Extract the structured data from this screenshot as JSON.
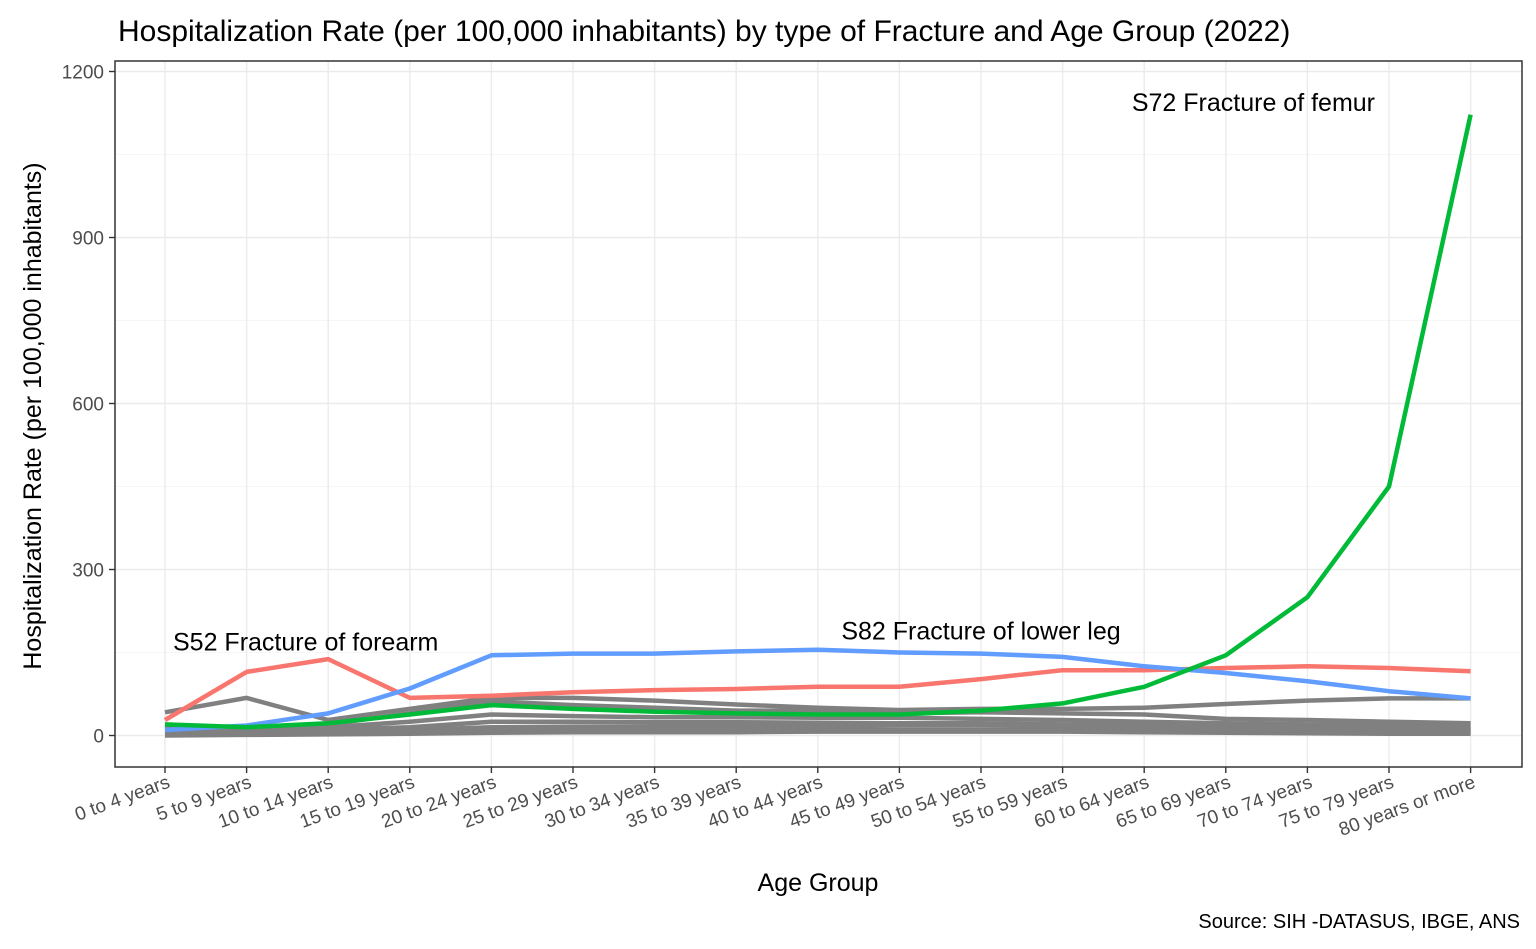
{
  "chart_data": {
    "type": "line",
    "title": "Hospitalization Rate (per 100,000 inhabitants) by type of Fracture and Age Group (2022)",
    "xlabel": "Age Group",
    "ylabel": "Hospitalization Rate (per 100,000 inhabitants)",
    "caption": "Source: SIH -DATASUS, IBGE, ANS",
    "ylim": [
      -60,
      1260
    ],
    "yticks": [
      0,
      300,
      600,
      900,
      1200
    ],
    "grid": true,
    "categories": [
      "0 to 4 years",
      "5 to 9 years",
      "10 to 14 years",
      "15 to 19 years",
      "20 to 24 years",
      "25 to 29 years",
      "30 to 34 years",
      "35 to 39 years",
      "40 to 44 years",
      "45 to 49 years",
      "50 to 54 years",
      "55 to 59 years",
      "60 to 64 years",
      "65 to 69 years",
      "70 to 74 years",
      "75 to 79 years",
      "80 years or more"
    ],
    "background_series": [
      {
        "name": "other-1",
        "color": "#808080",
        "values": [
          42,
          68,
          28,
          48,
          68,
          68,
          63,
          56,
          50,
          46,
          48,
          48,
          50,
          57,
          63,
          67,
          67
        ]
      },
      {
        "name": "other-2",
        "color": "#808080",
        "values": [
          18,
          12,
          20,
          40,
          62,
          55,
          50,
          45,
          45,
          40,
          42,
          40,
          38,
          30,
          28,
          25,
          22
        ]
      },
      {
        "name": "other-3",
        "color": "#808080",
        "values": [
          8,
          10,
          15,
          25,
          38,
          35,
          33,
          33,
          32,
          32,
          30,
          28,
          25,
          22,
          20,
          18,
          17
        ]
      },
      {
        "name": "other-4",
        "color": "#808080",
        "values": [
          5,
          8,
          10,
          15,
          25,
          25,
          24,
          24,
          23,
          22,
          22,
          20,
          18,
          16,
          14,
          12,
          12
        ]
      },
      {
        "name": "other-5",
        "color": "#808080",
        "values": [
          3,
          4,
          6,
          10,
          15,
          16,
          16,
          17,
          17,
          18,
          18,
          17,
          16,
          14,
          12,
          11,
          10
        ]
      },
      {
        "name": "other-6",
        "color": "#808080",
        "values": [
          1,
          2,
          3,
          6,
          9,
          10,
          10,
          10,
          10,
          10,
          10,
          10,
          9,
          8,
          7,
          6,
          5
        ]
      },
      {
        "name": "other-7",
        "color": "#808080",
        "values": [
          0,
          1,
          2,
          3,
          5,
          6,
          6,
          6,
          7,
          7,
          7,
          7,
          6,
          5,
          4,
          3,
          3
        ]
      }
    ],
    "series": [
      {
        "name": "S52 Fracture of forearm",
        "color": "#F8766D",
        "values": [
          28,
          115,
          138,
          68,
          72,
          78,
          82,
          84,
          88,
          88,
          102,
          118,
          118,
          122,
          125,
          122,
          116
        ]
      },
      {
        "name": "S82 Fracture of lower leg",
        "color": "#619CFF",
        "values": [
          10,
          18,
          40,
          85,
          145,
          148,
          148,
          152,
          155,
          150,
          148,
          142,
          125,
          113,
          98,
          80,
          67
        ]
      },
      {
        "name": "S72 Fracture of femur",
        "color": "#00BA38",
        "values": [
          20,
          15,
          22,
          38,
          55,
          48,
          43,
          40,
          38,
          38,
          45,
          58,
          88,
          145,
          250,
          450,
          1122
        ]
      }
    ],
    "annotations": [
      {
        "text": "S52 Fracture of forearm",
        "series": "S52 Fracture of forearm",
        "category": "0 to 4 years",
        "y": 170,
        "anchor": "start"
      },
      {
        "text": "S82 Fracture of lower leg",
        "series": "S82 Fracture of lower leg",
        "category": "50 to 54 years",
        "y": 190,
        "anchor": "middle"
      },
      {
        "text": "S72 Fracture of femur",
        "series": "S72 Fracture of femur",
        "category": "75 to 79 years",
        "y": 1145,
        "anchor": "end"
      }
    ]
  }
}
